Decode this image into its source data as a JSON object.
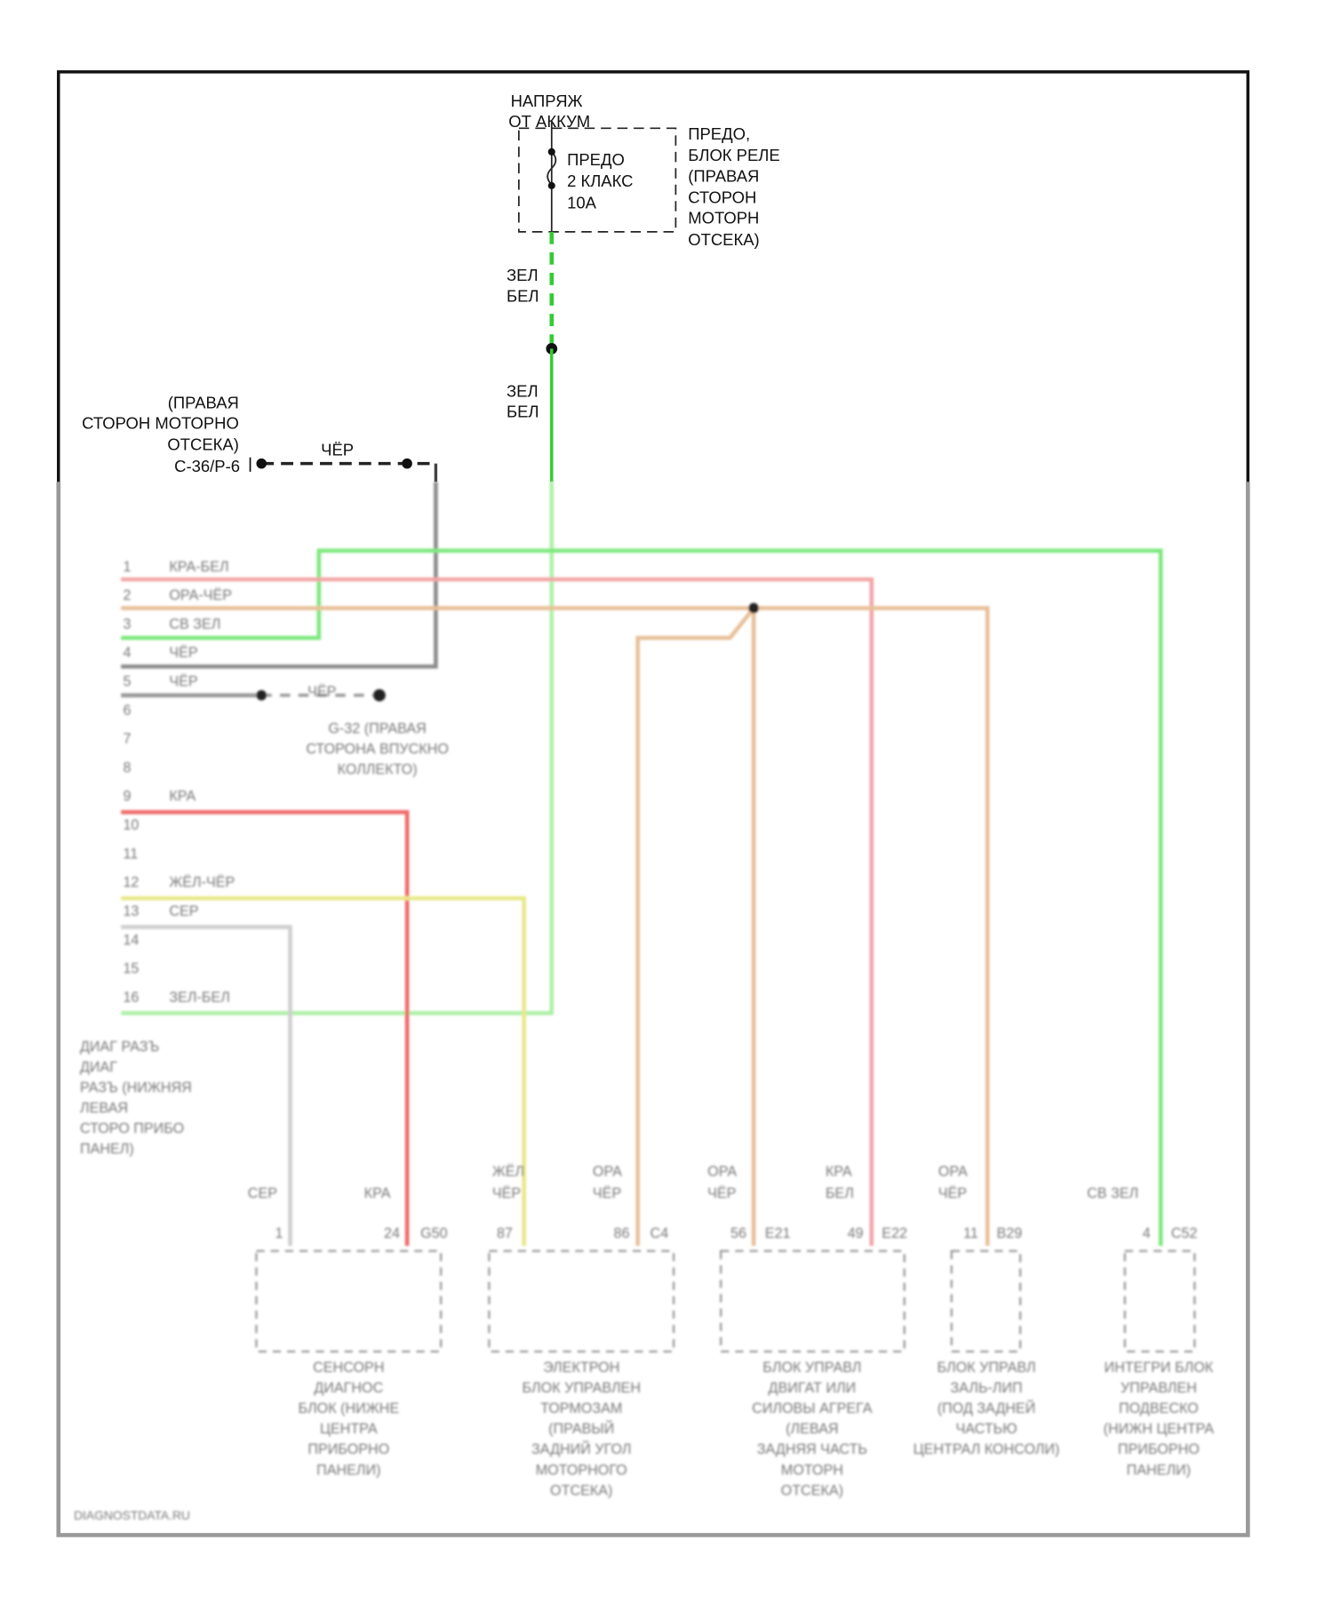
{
  "top": {
    "battery_label": [
      "НАПРЯЖ",
      "ОТ АККУМ"
    ],
    "fuse_label": [
      "ПРЕДО",
      "2 КЛАКС",
      "10А"
    ],
    "relay_block_label": [
      "ПРЕДО,",
      "БЛОК РЕЛЕ",
      "(ПРАВАЯ",
      "СТОРОН",
      "МОТОРН",
      "ОТСЕКА)"
    ],
    "wire_upper": [
      "ЗЕЛ",
      "БЕЛ"
    ],
    "wire_lower": [
      "ЗЕЛ",
      "БЕЛ"
    ],
    "ground_label": [
      "(ПРАВАЯ",
      "СТОРОН МОТОРНО",
      "ОТСЕКА)"
    ],
    "ground_connector": "C-36/P-6",
    "ground_wire": "ЧЁР"
  },
  "connector": {
    "pins": [
      {
        "num": "1",
        "wire": "КРА-БЕЛ"
      },
      {
        "num": "2",
        "wire": "ОРА-ЧЁР"
      },
      {
        "num": "3",
        "wire": "СВ ЗЕЛ"
      },
      {
        "num": "4",
        "wire": "ЧЁР"
      },
      {
        "num": "5",
        "wire": "ЧЁР"
      },
      {
        "num": "6",
        "wire": ""
      },
      {
        "num": "7",
        "wire": ""
      },
      {
        "num": "8",
        "wire": ""
      },
      {
        "num": "9",
        "wire": "КРА"
      },
      {
        "num": "10",
        "wire": ""
      },
      {
        "num": "11",
        "wire": ""
      },
      {
        "num": "12",
        "wire": "ЖЁЛ-ЧЁР"
      },
      {
        "num": "13",
        "wire": "СЕР"
      },
      {
        "num": "14",
        "wire": ""
      },
      {
        "num": "15",
        "wire": ""
      },
      {
        "num": "16",
        "wire": "ЗЕЛ-БЕЛ"
      }
    ],
    "pin5_wire_right": "ЧЁР",
    "ground_point_label": [
      "G-32 (ПРАВАЯ",
      "СТОРОНА ВПУСКНО",
      "КОЛЛЕКТО)"
    ],
    "name": [
      "ДИАГ РАЗЪ",
      "ДИАГ",
      "РАЗЪ (НИЖНЯЯ",
      "ЛЕВАЯ",
      "СТОРО ПРИБО",
      "ПАНЕЛ)"
    ]
  },
  "modules": [
    {
      "wires": [
        [
          "СЕР"
        ],
        [
          "КРА"
        ]
      ],
      "pins": [
        "1",
        "24",
        "G50"
      ],
      "name": [
        "СЕНСОРН",
        "ДИАГНОС",
        "БЛОК (НИЖНЕ",
        "ЦЕНТРА",
        "ПРИБОРНО",
        "ПАНЕЛИ)"
      ]
    },
    {
      "wires": [
        [
          "ЖЁЛ",
          "ЧЁР"
        ],
        [
          "ОРА",
          "ЧЁР"
        ]
      ],
      "pins": [
        "87",
        "86",
        "C4"
      ],
      "name": [
        "ЭЛЕКТРОН",
        "БЛОК УПРАВЛЕН",
        "ТОРМОЗАМ",
        "(ПРАВЫЙ",
        "ЗАДНИЙ УГОЛ",
        "МОТОРНОГО",
        "ОТСЕКА)"
      ]
    },
    {
      "wires": [
        [
          "ОРА",
          "ЧЁР"
        ],
        [
          "КРА",
          "БЕЛ"
        ]
      ],
      "pins": [
        "56",
        "E21",
        "49",
        "E22"
      ],
      "name": [
        "БЛОК УПРАВЛ",
        "ДВИГАТ ИЛИ",
        "СИЛОВЫ АГРЕГА",
        "(ЛЕВАЯ",
        "ЗАДНЯЯ ЧАСТЬ",
        "МОТОРН",
        "ОТСЕКА)"
      ]
    },
    {
      "wires": [
        [
          "ОРА",
          "ЧЁР"
        ]
      ],
      "pins": [
        "11",
        "B29"
      ],
      "name": [
        "БЛОК УПРАВЛ",
        "ЗАЛЬ-ЛИП",
        "(ПОД ЗАДНЕЙ",
        "ЧАСТЬЮ",
        "ЦЕНТРАЛ КОНСОЛИ)"
      ]
    },
    {
      "wires": [
        [
          "СВ ЗЕЛ"
        ]
      ],
      "pins": [
        "4",
        "C52"
      ],
      "name": [
        "ИНТЕГРИ БЛОК",
        "УПРАВЛЕН",
        "ПОДВЕСКО",
        "(НИЖН ЦЕНТРА",
        "ПРИБОРНО",
        "ПАНЕЛИ)"
      ]
    }
  ],
  "watermark": "DIAGNOSTDATA.RU",
  "colors": {
    "green": "#7ee87e",
    "green_bright": "#33cc33",
    "pink": "#f2a5a5",
    "red": "#f06a6a",
    "orange": "#e8c09a",
    "yellow": "#e8e88a",
    "gray": "#8c8c8c",
    "light_gray": "#cfcfcf"
  }
}
